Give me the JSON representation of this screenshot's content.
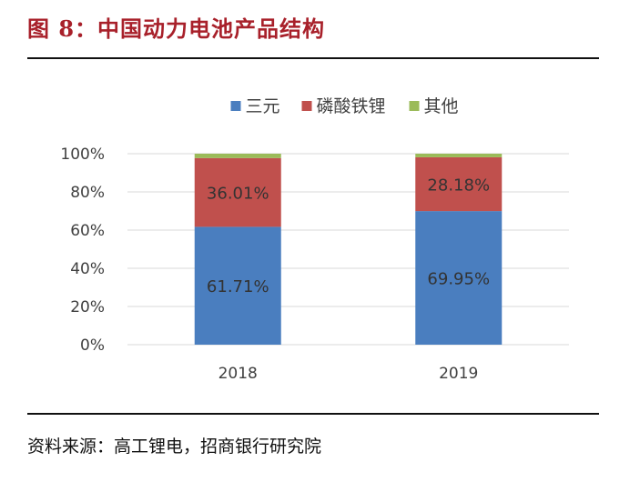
{
  "title": "图 8：中国动力电池产品结构",
  "source": "资料来源：高工锂电，招商银行研究院",
  "colors": {
    "title": "#a8202a",
    "sanyuan": "#4a7ebf",
    "lfp": "#c0504d",
    "other": "#9bbb59"
  },
  "chart_data": {
    "type": "bar",
    "stacked": true,
    "categories": [
      "2018",
      "2019"
    ],
    "series": [
      {
        "name": "三元",
        "values": [
          61.71,
          69.95
        ],
        "labels": [
          "61.71%",
          "69.95%"
        ],
        "color": "#4a7ebf"
      },
      {
        "name": "磷酸铁锂",
        "values": [
          36.01,
          28.18
        ],
        "labels": [
          "36.01%",
          "28.18%"
        ],
        "color": "#c0504d"
      },
      {
        "name": "其他",
        "values": [
          2.28,
          1.87
        ],
        "labels": [
          "",
          ""
        ],
        "color": "#9bbb59"
      }
    ],
    "yticks": [
      "0%",
      "20%",
      "40%",
      "60%",
      "80%",
      "100%"
    ],
    "ylim": [
      0,
      100
    ],
    "legend": "top-center",
    "grid": true
  }
}
